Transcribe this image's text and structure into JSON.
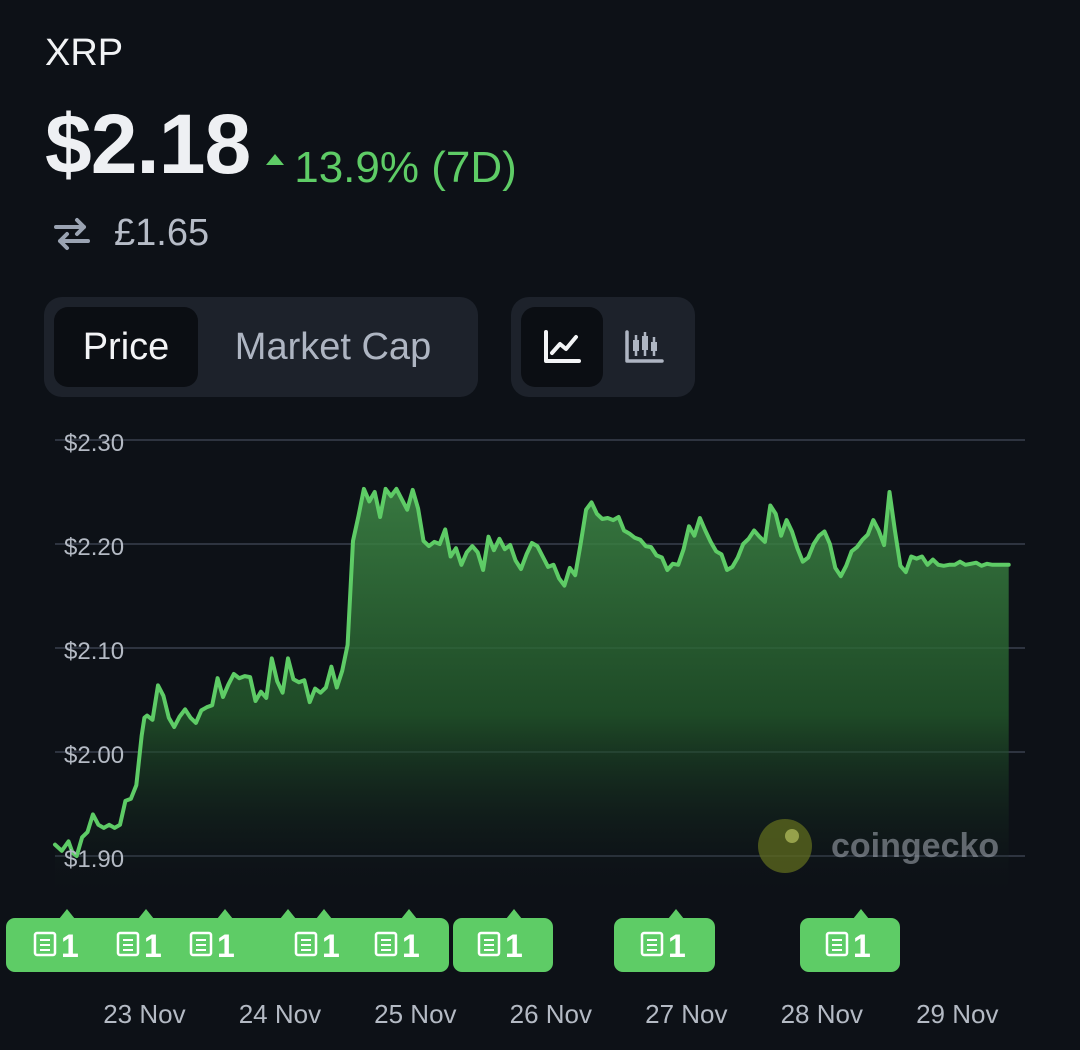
{
  "header": {
    "coin": "XRP",
    "price": "$2.18",
    "change": "13.9% (7D)",
    "converted": "£1.65"
  },
  "metric_tabs": [
    {
      "label": "Price",
      "active": true
    },
    {
      "label": "Market Cap",
      "active": false
    }
  ],
  "chart_type_buttons": [
    {
      "icon": "line-chart-icon",
      "active": true
    },
    {
      "icon": "candlestick-chart-icon",
      "active": false
    }
  ],
  "watermark": "coingecko",
  "colors": {
    "up": "#5ecc66",
    "background": "#0d1117"
  },
  "chart_data": {
    "type": "area",
    "ylim": [
      1.86,
      2.3
    ],
    "yticks": [
      2.3,
      2.2,
      2.1,
      2.0,
      1.9
    ],
    "ytick_labels": [
      "$2.30",
      "$2.20",
      "$2.10",
      "$2.00",
      "$1.90"
    ],
    "xlim": [
      0,
      7.16
    ],
    "xticks": [
      0.66,
      1.66,
      2.66,
      3.66,
      4.66,
      5.66,
      6.66
    ],
    "xtick_labels": [
      "23 Nov",
      "24 Nov",
      "25 Nov",
      "26 Nov",
      "27 Nov",
      "28 Nov",
      "29 Nov"
    ],
    "grid": true,
    "series": [
      {
        "values": [
          [
            0.0,
            1.911
          ],
          [
            0.05,
            1.905
          ],
          [
            0.1,
            1.914
          ],
          [
            0.13,
            1.903
          ],
          [
            0.16,
            1.9
          ],
          [
            0.2,
            1.918
          ],
          [
            0.24,
            1.923
          ],
          [
            0.28,
            1.94
          ],
          [
            0.32,
            1.93
          ],
          [
            0.36,
            1.927
          ],
          [
            0.4,
            1.93
          ],
          [
            0.44,
            1.927
          ],
          [
            0.48,
            1.93
          ],
          [
            0.52,
            1.953
          ],
          [
            0.56,
            1.955
          ],
          [
            0.6,
            1.968
          ],
          [
            0.64,
            2.016
          ],
          [
            0.66,
            2.033
          ],
          [
            0.68,
            2.035
          ],
          [
            0.72,
            2.031
          ],
          [
            0.76,
            2.064
          ],
          [
            0.8,
            2.054
          ],
          [
            0.84,
            2.033
          ],
          [
            0.88,
            2.024
          ],
          [
            0.92,
            2.034
          ],
          [
            0.96,
            2.041
          ],
          [
            1.0,
            2.033
          ],
          [
            1.04,
            2.028
          ],
          [
            1.08,
            2.04
          ],
          [
            1.12,
            2.043
          ],
          [
            1.16,
            2.045
          ],
          [
            1.2,
            2.071
          ],
          [
            1.24,
            2.053
          ],
          [
            1.28,
            2.065
          ],
          [
            1.32,
            2.075
          ],
          [
            1.36,
            2.071
          ],
          [
            1.4,
            2.073
          ],
          [
            1.44,
            2.072
          ],
          [
            1.48,
            2.049
          ],
          [
            1.52,
            2.058
          ],
          [
            1.56,
            2.052
          ],
          [
            1.6,
            2.09
          ],
          [
            1.64,
            2.068
          ],
          [
            1.68,
            2.057
          ],
          [
            1.72,
            2.09
          ],
          [
            1.76,
            2.07
          ],
          [
            1.8,
            2.067
          ],
          [
            1.84,
            2.069
          ],
          [
            1.88,
            2.048
          ],
          [
            1.92,
            2.061
          ],
          [
            1.96,
            2.057
          ],
          [
            2.0,
            2.062
          ],
          [
            2.04,
            2.082
          ],
          [
            2.08,
            2.062
          ],
          [
            2.12,
            2.078
          ],
          [
            2.16,
            2.103
          ],
          [
            2.2,
            2.203
          ],
          [
            2.24,
            2.227
          ],
          [
            2.28,
            2.253
          ],
          [
            2.32,
            2.241
          ],
          [
            2.36,
            2.25
          ],
          [
            2.4,
            2.226
          ],
          [
            2.44,
            2.253
          ],
          [
            2.48,
            2.246
          ],
          [
            2.52,
            2.253
          ],
          [
            2.56,
            2.243
          ],
          [
            2.6,
            2.233
          ],
          [
            2.64,
            2.252
          ],
          [
            2.68,
            2.234
          ],
          [
            2.72,
            2.203
          ],
          [
            2.76,
            2.198
          ],
          [
            2.8,
            2.202
          ],
          [
            2.84,
            2.2
          ],
          [
            2.88,
            2.214
          ],
          [
            2.92,
            2.188
          ],
          [
            2.96,
            2.196
          ],
          [
            3.0,
            2.18
          ],
          [
            3.04,
            2.192
          ],
          [
            3.08,
            2.198
          ],
          [
            3.12,
            2.192
          ],
          [
            3.16,
            2.175
          ],
          [
            3.2,
            2.207
          ],
          [
            3.24,
            2.194
          ],
          [
            3.28,
            2.205
          ],
          [
            3.32,
            2.195
          ],
          [
            3.36,
            2.199
          ],
          [
            3.4,
            2.184
          ],
          [
            3.44,
            2.176
          ],
          [
            3.48,
            2.19
          ],
          [
            3.52,
            2.201
          ],
          [
            3.56,
            2.198
          ],
          [
            3.6,
            2.188
          ],
          [
            3.64,
            2.178
          ],
          [
            3.68,
            2.18
          ],
          [
            3.72,
            2.167
          ],
          [
            3.76,
            2.16
          ],
          [
            3.8,
            2.177
          ],
          [
            3.84,
            2.17
          ],
          [
            3.88,
            2.2
          ],
          [
            3.92,
            2.233
          ],
          [
            3.96,
            2.24
          ],
          [
            4.0,
            2.229
          ],
          [
            4.04,
            2.224
          ],
          [
            4.08,
            2.225
          ],
          [
            4.12,
            2.223
          ],
          [
            4.16,
            2.226
          ],
          [
            4.2,
            2.213
          ],
          [
            4.24,
            2.21
          ],
          [
            4.28,
            2.206
          ],
          [
            4.32,
            2.204
          ],
          [
            4.36,
            2.198
          ],
          [
            4.4,
            2.197
          ],
          [
            4.44,
            2.189
          ],
          [
            4.48,
            2.187
          ],
          [
            4.52,
            2.175
          ],
          [
            4.56,
            2.181
          ],
          [
            4.6,
            2.18
          ],
          [
            4.64,
            2.195
          ],
          [
            4.68,
            2.217
          ],
          [
            4.72,
            2.208
          ],
          [
            4.76,
            2.225
          ],
          [
            4.8,
            2.213
          ],
          [
            4.84,
            2.202
          ],
          [
            4.88,
            2.193
          ],
          [
            4.92,
            2.19
          ],
          [
            4.96,
            2.175
          ],
          [
            5.0,
            2.178
          ],
          [
            5.04,
            2.187
          ],
          [
            5.08,
            2.2
          ],
          [
            5.12,
            2.205
          ],
          [
            5.16,
            2.213
          ],
          [
            5.2,
            2.207
          ],
          [
            5.24,
            2.202
          ],
          [
            5.28,
            2.237
          ],
          [
            5.32,
            2.229
          ],
          [
            5.36,
            2.208
          ],
          [
            5.4,
            2.223
          ],
          [
            5.44,
            2.212
          ],
          [
            5.48,
            2.196
          ],
          [
            5.52,
            2.183
          ],
          [
            5.56,
            2.187
          ],
          [
            5.6,
            2.2
          ],
          [
            5.64,
            2.208
          ],
          [
            5.68,
            2.212
          ],
          [
            5.72,
            2.2
          ],
          [
            5.76,
            2.177
          ],
          [
            5.8,
            2.169
          ],
          [
            5.84,
            2.179
          ],
          [
            5.88,
            2.193
          ],
          [
            5.92,
            2.197
          ],
          [
            5.96,
            2.204
          ],
          [
            6.0,
            2.209
          ],
          [
            6.04,
            2.223
          ],
          [
            6.08,
            2.213
          ],
          [
            6.12,
            2.199
          ],
          [
            6.16,
            2.25
          ],
          [
            6.2,
            2.213
          ],
          [
            6.24,
            2.179
          ],
          [
            6.28,
            2.173
          ],
          [
            6.32,
            2.188
          ],
          [
            6.36,
            2.186
          ],
          [
            6.4,
            2.188
          ],
          [
            6.44,
            2.18
          ],
          [
            6.48,
            2.185
          ],
          [
            6.52,
            2.18
          ],
          [
            6.56,
            2.179
          ],
          [
            6.6,
            2.18
          ],
          [
            6.64,
            2.18
          ],
          [
            6.68,
            2.183
          ],
          [
            6.72,
            2.18
          ],
          [
            6.76,
            2.181
          ],
          [
            6.8,
            2.182
          ],
          [
            6.84,
            2.179
          ],
          [
            6.88,
            2.181
          ],
          [
            6.92,
            2.18
          ],
          [
            6.96,
            2.18
          ],
          [
            7.0,
            2.18
          ],
          [
            7.04,
            2.18
          ]
        ]
      }
    ],
    "annotations": [
      {
        "group": 1,
        "label": "1"
      },
      {
        "group": 1,
        "label": "1"
      },
      {
        "group": 1,
        "label": "1"
      },
      {
        "group": 1,
        "label": "1"
      },
      {
        "group": 1,
        "label": "1"
      },
      {
        "group": 2,
        "label": "1"
      },
      {
        "group": 3,
        "label": "1"
      },
      {
        "group": 4,
        "label": "1"
      }
    ]
  }
}
